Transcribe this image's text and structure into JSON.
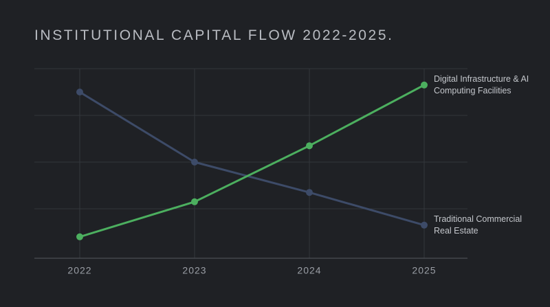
{
  "chart_data": {
    "type": "line",
    "title": "INSTITUTIONAL CAPITAL FLOW 2022-2025.",
    "categories": [
      "2022",
      "2023",
      "2024",
      "2025"
    ],
    "series": [
      {
        "name": "Traditional Commercial Real Estate",
        "color": "#3d4b68",
        "values": [
          3.5,
          2.0,
          1.35,
          0.65
        ]
      },
      {
        "name": "Digital Infrastructure & AI Computing Facilities",
        "color": "#4caf5f",
        "values": [
          0.4,
          1.15,
          2.35,
          3.65
        ]
      }
    ],
    "ylim": [
      0,
      4
    ],
    "yticks": [
      1,
      2,
      3,
      4
    ],
    "ytick_labels": false,
    "grid": true
  }
}
